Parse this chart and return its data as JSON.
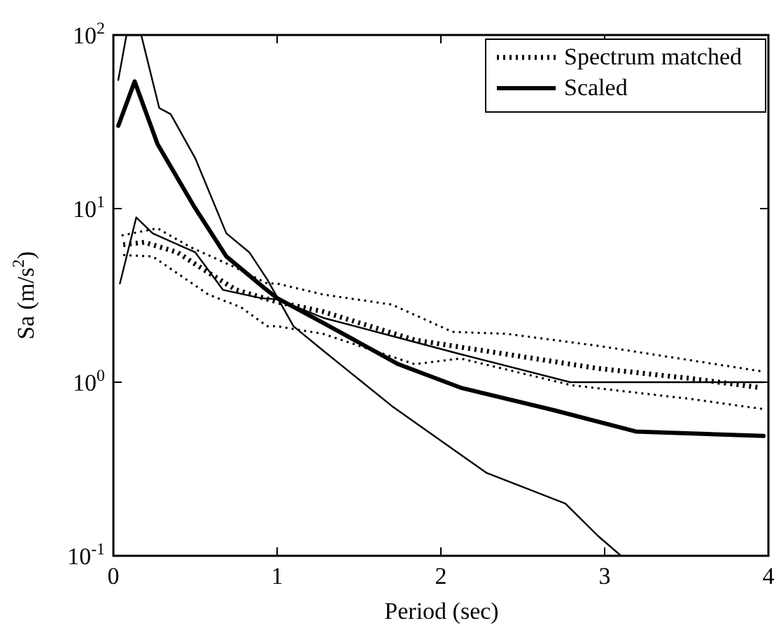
{
  "chart_data": {
    "type": "line",
    "xlabel": "Period (sec)",
    "ylabel": "Sa (m/s$^{2}$)",
    "log": "y",
    "xlim": [
      0,
      4
    ],
    "ylim": [
      0.1,
      100
    ],
    "xticks": [
      0,
      1,
      2,
      3,
      4
    ],
    "yticks": [
      {
        "value": 0.1,
        "label": "10$^{-1}$"
      },
      {
        "value": 1,
        "label": "10$^{0}$"
      },
      {
        "value": 10,
        "label": "10$^{1}$"
      },
      {
        "value": 100,
        "label": "10$^{2}$"
      }
    ],
    "grid": false,
    "legend": "top right",
    "series": [
      {
        "name": "Spectrum matched",
        "color": "#000000",
        "line_style": "dotted",
        "x": [
          0.06,
          0.19,
          0.39,
          0.56,
          0.75,
          1.0,
          1.28,
          1.84,
          2.4,
          2.96,
          3.53,
          3.95
        ],
        "values": [
          6.2,
          6.4,
          5.6,
          4.4,
          3.4,
          2.9,
          2.55,
          1.75,
          1.45,
          1.2,
          1.05,
          0.93
        ]
      },
      {
        "name": "Scaled",
        "color": "#000000",
        "line_style": "solid",
        "x": [
          0.03,
          0.13,
          0.27,
          0.49,
          0.69,
          0.92,
          1.0,
          1.28,
          1.74,
          2.12,
          2.69,
          3.19,
          3.97
        ],
        "values": [
          30,
          54,
          23.5,
          10.4,
          5.3,
          3.5,
          3.05,
          2.2,
          1.27,
          0.93,
          0.69,
          0.52,
          0.49
        ]
      },
      {
        "color": "#000000",
        "line_style": "dotted",
        "x": [
          0.05,
          0.27,
          0.47,
          0.72,
          0.94,
          1.0,
          1.28,
          1.7,
          2.07,
          2.4,
          2.96,
          3.97
        ],
        "values": [
          7.0,
          7.7,
          6.0,
          4.7,
          3.7,
          3.7,
          3.2,
          2.8,
          1.95,
          1.9,
          1.62,
          1.15
        ]
      },
      {
        "color": "#000000",
        "line_style": "dotted",
        "x": [
          0.06,
          0.24,
          0.58,
          0.78,
          0.94,
          1.0,
          1.28,
          1.84,
          2.12,
          2.8,
          3.53,
          3.97
        ],
        "values": [
          5.4,
          5.3,
          3.2,
          2.7,
          2.1,
          2.1,
          1.9,
          1.27,
          1.37,
          0.96,
          0.8,
          0.7
        ]
      },
      {
        "color": "#000000",
        "line_style": "solid",
        "x": [
          0.03,
          0.08,
          0.17,
          0.28,
          0.35,
          0.5,
          0.69,
          0.83,
          0.94,
          1.1,
          1.27,
          1.7,
          2.06,
          2.28,
          2.45,
          2.76,
          2.96,
          3.1
        ],
        "values": [
          55,
          100,
          100,
          38,
          35,
          19.5,
          7.2,
          5.6,
          3.9,
          2.1,
          1.55,
          0.73,
          0.42,
          0.3,
          0.26,
          0.2,
          0.13,
          0.1
        ]
      },
      {
        "color": "#000000",
        "line_style": "solid",
        "x": [
          0.04,
          0.14,
          0.24,
          0.5,
          0.67,
          0.9,
          1.0,
          1.28,
          2.12,
          2.79,
          3.3,
          3.97
        ],
        "values": [
          3.7,
          8.9,
          7.2,
          5.6,
          3.4,
          3.05,
          3.0,
          2.35,
          1.45,
          1.0,
          1.0,
          1.0
        ]
      }
    ]
  }
}
